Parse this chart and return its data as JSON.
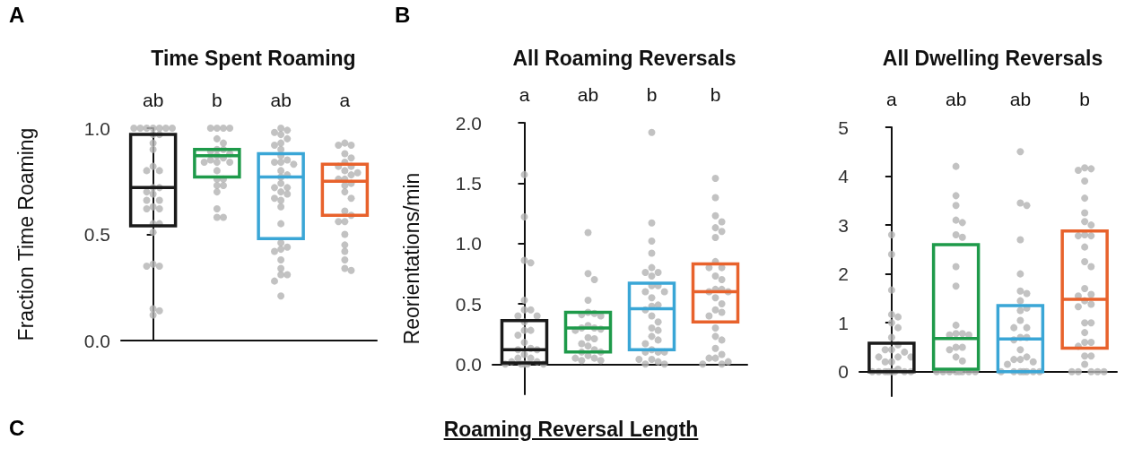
{
  "chart_data": [
    {
      "type": "box",
      "title": "Time Spent Roaming",
      "ylabel": "Fraction Time Roaming",
      "annotations": [
        "A",
        "ab",
        "b",
        "ab",
        "a"
      ],
      "categories": [
        null,
        null,
        null,
        null
      ],
      "ylim": [
        0,
        1
      ],
      "yticks": [
        {
          "value": 0,
          "label": "0.0"
        },
        {
          "value": 0.5,
          "label": "0.5"
        },
        {
          "value": 1,
          "label": "1.0"
        }
      ],
      "marker": "circle",
      "colors": [
        "#1a1a1a",
        "#1e9a4a",
        "#3aa6d6",
        "#e8622c"
      ],
      "boxes": [
        {
          "low": 0.54,
          "q1": 0.54,
          "median": 0.72,
          "q3": 0.97,
          "high": 0.97,
          "outliers": [
            1,
            1,
            1,
            1,
            1,
            1,
            1,
            0.97,
            0.97,
            0.93,
            0.9,
            0.82,
            0.8,
            0.8,
            0.72,
            0.72,
            0.7,
            0.69,
            0.66,
            0.66,
            0.63,
            0.62,
            0.62,
            0.55,
            0.55,
            0.51,
            0.36,
            0.35,
            0.35,
            0.15,
            0.14,
            0.12
          ]
        },
        {
          "low": 0.77,
          "q1": 0.77,
          "median": 0.87,
          "q3": 0.9,
          "high": 0.9,
          "outliers": [
            1,
            1,
            1,
            1,
            0.95,
            0.93,
            0.9,
            0.9,
            0.89,
            0.88,
            0.87,
            0.86,
            0.85,
            0.84,
            0.84,
            0.84,
            0.8,
            0.76,
            0.76,
            0.73,
            0.73,
            0.7,
            0.62,
            0.58,
            0.58
          ]
        },
        {
          "low": 0.48,
          "q1": 0.48,
          "median": 0.77,
          "q3": 0.88,
          "high": 0.88,
          "outliers": [
            1,
            0.99,
            0.98,
            0.97,
            0.95,
            0.93,
            0.92,
            0.9,
            0.87,
            0.85,
            0.84,
            0.84,
            0.83,
            0.8,
            0.78,
            0.77,
            0.74,
            0.72,
            0.72,
            0.7,
            0.69,
            0.67,
            0.66,
            0.63,
            0.55,
            0.46,
            0.44,
            0.43,
            0.42,
            0.38,
            0.34,
            0.31,
            0.31,
            0.28,
            0.21
          ]
        },
        {
          "low": 0.59,
          "q1": 0.59,
          "median": 0.75,
          "q3": 0.83,
          "high": 0.83,
          "outliers": [
            0.93,
            0.92,
            0.92,
            0.88,
            0.86,
            0.84,
            0.82,
            0.82,
            0.8,
            0.79,
            0.78,
            0.76,
            0.76,
            0.74,
            0.73,
            0.7,
            0.67,
            0.61,
            0.59,
            0.56,
            0.56,
            0.5,
            0.45,
            0.42,
            0.38,
            0.34,
            0.33
          ]
        }
      ]
    },
    {
      "type": "box",
      "title": "All Roaming Reversals",
      "ylabel": "Reorientations/min",
      "annotations": [
        "B",
        "a",
        "ab",
        "b",
        "b"
      ],
      "categories": [
        null,
        null,
        null,
        null
      ],
      "ylim": [
        -0.25,
        2
      ],
      "yticks": [
        {
          "value": 0,
          "label": "0.0"
        },
        {
          "value": 0.5,
          "label": "0.5"
        },
        {
          "value": 1,
          "label": "1.0"
        },
        {
          "value": 1.5,
          "label": "1.5"
        },
        {
          "value": 2,
          "label": "2.0"
        }
      ],
      "marker": "circle",
      "colors": [
        "#1a1a1a",
        "#1e9a4a",
        "#3aa6d6",
        "#e8622c"
      ],
      "boxes": [
        {
          "low": 0.01,
          "q1": 0.01,
          "median": 0.12,
          "q3": 0.36,
          "high": 0.36,
          "outliers": [
            1.57,
            1.22,
            0.86,
            0.84,
            0.53,
            0.45,
            0.45,
            0.4,
            0.4,
            0.35,
            0.28,
            0.28,
            0.24,
            0.18,
            0.13,
            0.12,
            0.12,
            0.08,
            0.05,
            0.05,
            0.02,
            0.02,
            0,
            0,
            0,
            0,
            0
          ]
        },
        {
          "low": 0.1,
          "q1": 0.1,
          "median": 0.3,
          "q3": 0.43,
          "high": 0.43,
          "outliers": [
            1.09,
            0.75,
            0.7,
            0.53,
            0.43,
            0.42,
            0.41,
            0.4,
            0.32,
            0.3,
            0.3,
            0.29,
            0.28,
            0.22,
            0.21,
            0.17,
            0.15,
            0.12,
            0.1,
            0.1,
            0.07,
            0.05,
            0.05,
            0.03,
            0.03
          ]
        },
        {
          "low": 0.12,
          "q1": 0.12,
          "median": 0.46,
          "q3": 0.67,
          "high": 0.67,
          "outliers": [
            1.92,
            1.17,
            1.02,
            0.92,
            0.8,
            0.76,
            0.76,
            0.73,
            0.65,
            0.65,
            0.6,
            0.6,
            0.55,
            0.49,
            0.48,
            0.45,
            0.4,
            0.35,
            0.3,
            0.28,
            0.23,
            0.2,
            0.17,
            0.12,
            0.1,
            0.1,
            0.1,
            0.04,
            0.04,
            0.02,
            0,
            0
          ]
        },
        {
          "low": 0.35,
          "q1": 0.35,
          "median": 0.6,
          "q3": 0.83,
          "high": 0.83,
          "outliers": [
            1.54,
            1.38,
            1.23,
            1.18,
            1.13,
            1.1,
            1.05,
            0.85,
            0.8,
            0.8,
            0.73,
            0.7,
            0.62,
            0.62,
            0.6,
            0.6,
            0.55,
            0.5,
            0.45,
            0.43,
            0.4,
            0.3,
            0.23,
            0.2,
            0.13,
            0.08,
            0.05,
            0.05,
            0.02,
            0,
            0
          ]
        }
      ]
    },
    {
      "type": "box",
      "title": "All Dwelling Reversals",
      "annotations": [
        "a",
        "ab",
        "ab",
        "b"
      ],
      "categories": [
        null,
        null,
        null,
        null
      ],
      "ylim": [
        -0.5,
        5
      ],
      "yticks": [
        0,
        1,
        2,
        3,
        4,
        5
      ],
      "marker": "circle",
      "colors": [
        "#1a1a1a",
        "#1e9a4a",
        "#3aa6d6",
        "#e8622c"
      ],
      "boxes": [
        {
          "low": 0,
          "q1": 0,
          "median": 0,
          "q3": 0.58,
          "high": 0.58,
          "outliers": [
            2.8,
            2.4,
            1.67,
            1.17,
            1.12,
            1,
            0.9,
            0.7,
            0.55,
            0.45,
            0.45,
            0.4,
            0.3,
            0.3,
            0.3,
            0.2,
            0.2,
            0.05,
            0,
            0,
            0,
            0,
            0,
            0,
            0,
            0
          ]
        },
        {
          "low": 0.05,
          "q1": 0.05,
          "median": 0.68,
          "q3": 2.6,
          "high": 2.6,
          "outliers": [
            4.2,
            3.6,
            3.4,
            3.1,
            3.05,
            2.8,
            2.75,
            2.15,
            1.75,
            0.95,
            0.78,
            0.78,
            0.75,
            0.75,
            0.5,
            0.5,
            0.45,
            0.3,
            0.22,
            0,
            0,
            0,
            0,
            0,
            0,
            0,
            0
          ]
        },
        {
          "low": 0,
          "q1": 0,
          "median": 0.67,
          "q3": 1.35,
          "high": 1.35,
          "outliers": [
            4.5,
            3.45,
            3.4,
            2.7,
            2,
            1.65,
            1.6,
            1.45,
            1.3,
            1.25,
            1.05,
            0.9,
            0.9,
            0.7,
            0.7,
            0.65,
            0.45,
            0.3,
            0.25,
            0.25,
            0.2,
            0.15,
            0,
            0,
            0,
            0,
            0,
            0,
            0
          ]
        },
        {
          "low": 0.48,
          "q1": 0.48,
          "median": 1.48,
          "q3": 2.88,
          "high": 2.88,
          "outliers": [
            4.17,
            4.15,
            4.12,
            3.9,
            3.55,
            3.25,
            3.07,
            3,
            2.8,
            2.78,
            2.78,
            2.55,
            2.25,
            2.15,
            1.7,
            1.58,
            1.55,
            1.45,
            1.38,
            1.33,
            1,
            1,
            0.8,
            0.6,
            0.6,
            0.52,
            0.32,
            0.32,
            0.15,
            0,
            0,
            0,
            0,
            0
          ]
        }
      ]
    },
    {
      "type": "other",
      "title": "Roaming Reversal Length",
      "annotations": [
        "C"
      ]
    }
  ]
}
